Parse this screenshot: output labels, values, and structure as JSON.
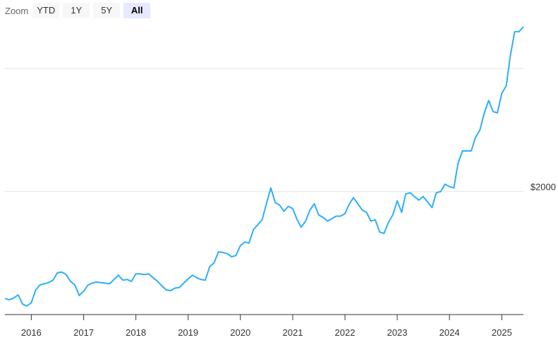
{
  "zoom": {
    "label": "Zoom",
    "buttons": [
      {
        "label": "YTD",
        "active": false
      },
      {
        "label": "1Y",
        "active": false
      },
      {
        "label": "5Y",
        "active": false
      },
      {
        "label": "All",
        "active": true
      }
    ]
  },
  "chart_data": {
    "type": "line",
    "title": "",
    "xlabel": "",
    "ylabel": "",
    "x_start": "2015-07",
    "x_end": "2025-06",
    "x_tick_labels": [
      "2016",
      "2017",
      "2018",
      "2019",
      "2020",
      "2021",
      "2022",
      "2023",
      "2024",
      "2025"
    ],
    "y_tick_labels": [
      "$2000"
    ],
    "ylim": [
      1000,
      3500
    ],
    "grid": true,
    "line_color": "#2caffe",
    "series": [
      {
        "values": [
          [
            "2015-07-01",
            1130
          ],
          [
            "2015-08-01",
            1120
          ],
          [
            "2015-09-01",
            1135
          ],
          [
            "2015-10-01",
            1160
          ],
          [
            "2015-11-01",
            1085
          ],
          [
            "2015-12-01",
            1070
          ],
          [
            "2016-01-01",
            1095
          ],
          [
            "2016-02-01",
            1200
          ],
          [
            "2016-03-01",
            1240
          ],
          [
            "2016-04-01",
            1250
          ],
          [
            "2016-05-01",
            1260
          ],
          [
            "2016-06-01",
            1280
          ],
          [
            "2016-07-01",
            1340
          ],
          [
            "2016-08-01",
            1345
          ],
          [
            "2016-09-01",
            1325
          ],
          [
            "2016-10-01",
            1270
          ],
          [
            "2016-11-01",
            1240
          ],
          [
            "2016-12-01",
            1155
          ],
          [
            "2017-01-01",
            1190
          ],
          [
            "2017-02-01",
            1240
          ],
          [
            "2017-03-01",
            1255
          ],
          [
            "2017-04-01",
            1265
          ],
          [
            "2017-05-01",
            1260
          ],
          [
            "2017-06-01",
            1255
          ],
          [
            "2017-07-01",
            1250
          ],
          [
            "2017-08-01",
            1285
          ],
          [
            "2017-09-01",
            1320
          ],
          [
            "2017-10-01",
            1280
          ],
          [
            "2017-11-01",
            1285
          ],
          [
            "2017-12-01",
            1270
          ],
          [
            "2018-01-01",
            1330
          ],
          [
            "2018-02-01",
            1330
          ],
          [
            "2018-03-01",
            1325
          ],
          [
            "2018-04-01",
            1330
          ],
          [
            "2018-05-01",
            1300
          ],
          [
            "2018-06-01",
            1270
          ],
          [
            "2018-07-01",
            1235
          ],
          [
            "2018-08-01",
            1200
          ],
          [
            "2018-09-01",
            1195
          ],
          [
            "2018-10-01",
            1215
          ],
          [
            "2018-11-01",
            1220
          ],
          [
            "2018-12-01",
            1255
          ],
          [
            "2019-01-01",
            1290
          ],
          [
            "2019-02-01",
            1320
          ],
          [
            "2019-03-01",
            1300
          ],
          [
            "2019-04-01",
            1285
          ],
          [
            "2019-05-01",
            1280
          ],
          [
            "2019-06-01",
            1390
          ],
          [
            "2019-07-01",
            1420
          ],
          [
            "2019-08-01",
            1510
          ],
          [
            "2019-09-01",
            1505
          ],
          [
            "2019-10-01",
            1495
          ],
          [
            "2019-11-01",
            1470
          ],
          [
            "2019-12-01",
            1480
          ],
          [
            "2020-01-01",
            1560
          ],
          [
            "2020-02-01",
            1590
          ],
          [
            "2020-03-01",
            1580
          ],
          [
            "2020-04-01",
            1690
          ],
          [
            "2020-05-01",
            1730
          ],
          [
            "2020-06-01",
            1770
          ],
          [
            "2020-07-01",
            1900
          ],
          [
            "2020-08-01",
            2030
          ],
          [
            "2020-09-01",
            1910
          ],
          [
            "2020-10-01",
            1890
          ],
          [
            "2020-11-01",
            1840
          ],
          [
            "2020-12-01",
            1880
          ],
          [
            "2021-01-01",
            1860
          ],
          [
            "2021-02-01",
            1770
          ],
          [
            "2021-03-01",
            1710
          ],
          [
            "2021-04-01",
            1760
          ],
          [
            "2021-05-01",
            1850
          ],
          [
            "2021-06-01",
            1900
          ],
          [
            "2021-07-01",
            1810
          ],
          [
            "2021-08-01",
            1790
          ],
          [
            "2021-09-01",
            1760
          ],
          [
            "2021-10-01",
            1780
          ],
          [
            "2021-11-01",
            1800
          ],
          [
            "2021-12-01",
            1800
          ],
          [
            "2022-01-01",
            1820
          ],
          [
            "2022-02-01",
            1900
          ],
          [
            "2022-03-01",
            1950
          ],
          [
            "2022-04-01",
            1900
          ],
          [
            "2022-05-01",
            1850
          ],
          [
            "2022-06-01",
            1830
          ],
          [
            "2022-07-01",
            1760
          ],
          [
            "2022-08-01",
            1770
          ],
          [
            "2022-09-01",
            1670
          ],
          [
            "2022-10-01",
            1660
          ],
          [
            "2022-11-01",
            1750
          ],
          [
            "2022-12-01",
            1810
          ],
          [
            "2023-01-01",
            1925
          ],
          [
            "2023-02-01",
            1830
          ],
          [
            "2023-03-01",
            1980
          ],
          [
            "2023-04-01",
            1990
          ],
          [
            "2023-05-01",
            1960
          ],
          [
            "2023-06-01",
            1930
          ],
          [
            "2023-07-01",
            1960
          ],
          [
            "2023-08-01",
            1915
          ],
          [
            "2023-09-01",
            1870
          ],
          [
            "2023-10-01",
            1990
          ],
          [
            "2023-11-01",
            2000
          ],
          [
            "2023-12-01",
            2060
          ],
          [
            "2024-01-01",
            2040
          ],
          [
            "2024-02-01",
            2030
          ],
          [
            "2024-03-01",
            2230
          ],
          [
            "2024-04-01",
            2330
          ],
          [
            "2024-05-01",
            2330
          ],
          [
            "2024-06-01",
            2330
          ],
          [
            "2024-07-01",
            2440
          ],
          [
            "2024-08-01",
            2500
          ],
          [
            "2024-09-01",
            2640
          ],
          [
            "2024-10-01",
            2740
          ],
          [
            "2024-11-01",
            2650
          ],
          [
            "2024-12-01",
            2640
          ],
          [
            "2025-01-01",
            2800
          ],
          [
            "2025-02-01",
            2860
          ],
          [
            "2025-03-01",
            3100
          ],
          [
            "2025-04-01",
            3300
          ],
          [
            "2025-05-01",
            3300
          ],
          [
            "2025-06-01",
            3340
          ]
        ]
      }
    ]
  }
}
